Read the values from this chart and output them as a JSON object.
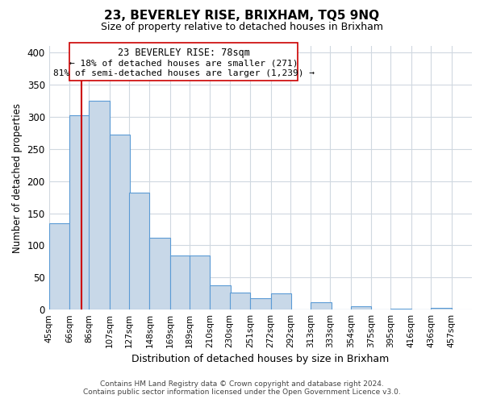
{
  "title": "23, BEVERLEY RISE, BRIXHAM, TQ5 9NQ",
  "subtitle": "Size of property relative to detached houses in Brixham",
  "xlabel": "Distribution of detached houses by size in Brixham",
  "ylabel": "Number of detached properties",
  "bar_color": "#c8d8e8",
  "bar_edge_color": "#5b9bd5",
  "marker_color": "#cc0000",
  "marker_x": 78,
  "bins_left": [
    45,
    66,
    86,
    107,
    127,
    148,
    169,
    189,
    210,
    230,
    251,
    272,
    292,
    313,
    333,
    354,
    375,
    395,
    416,
    436
  ],
  "bin_width": 21,
  "heights": [
    135,
    302,
    325,
    272,
    182,
    112,
    84,
    84,
    38,
    26,
    18,
    25,
    0,
    11,
    0,
    5,
    0,
    1,
    0,
    3
  ],
  "tick_labels": [
    "45sqm",
    "66sqm",
    "86sqm",
    "107sqm",
    "127sqm",
    "148sqm",
    "169sqm",
    "189sqm",
    "210sqm",
    "230sqm",
    "251sqm",
    "272sqm",
    "292sqm",
    "313sqm",
    "333sqm",
    "354sqm",
    "375sqm",
    "395sqm",
    "416sqm",
    "436sqm",
    "457sqm"
  ],
  "ylim": [
    0,
    410
  ],
  "yticks": [
    0,
    50,
    100,
    150,
    200,
    250,
    300,
    350,
    400
  ],
  "xlim_left": 45,
  "xlim_right": 478,
  "annotation_title": "23 BEVERLEY RISE: 78sqm",
  "annotation_line1": "← 18% of detached houses are smaller (271)",
  "annotation_line2": "81% of semi-detached houses are larger (1,239) →",
  "footer_line1": "Contains HM Land Registry data © Crown copyright and database right 2024.",
  "footer_line2": "Contains public sector information licensed under the Open Government Licence v3.0.",
  "background_color": "#ffffff",
  "grid_color": "#d0d8e0"
}
